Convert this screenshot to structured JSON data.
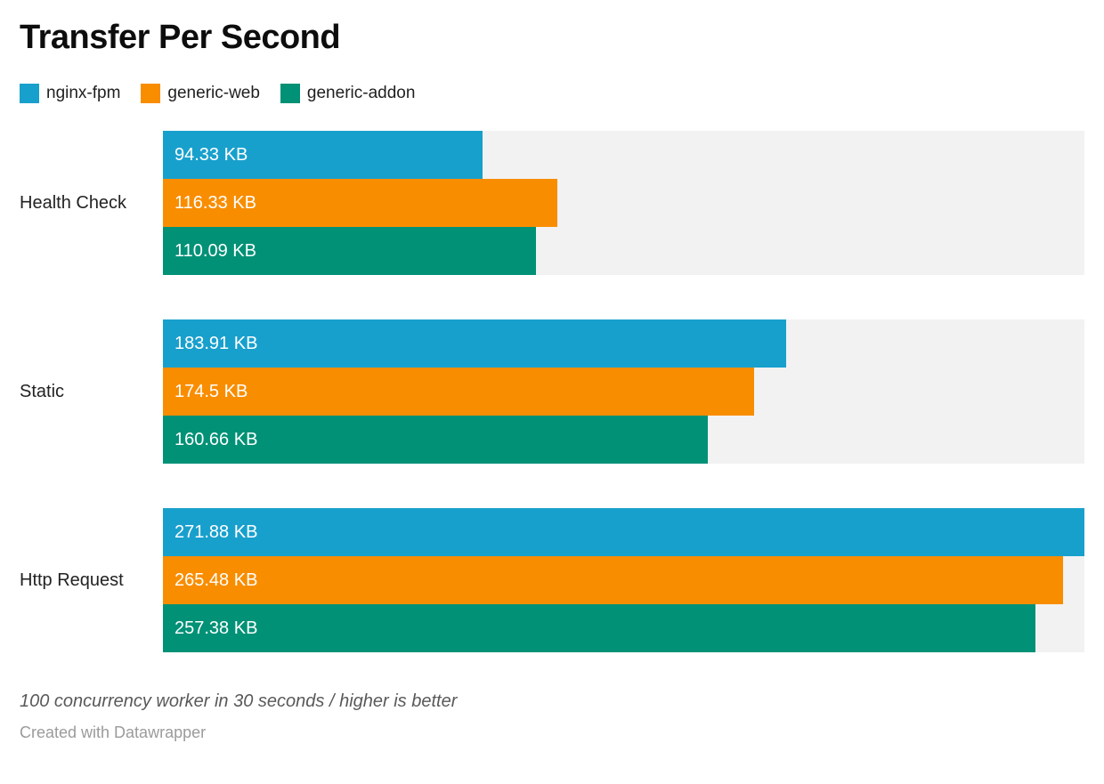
{
  "header": {
    "title": "Transfer Per Second"
  },
  "legend": {
    "items": [
      {
        "label": "nginx-fpm",
        "color": "#18a0cd"
      },
      {
        "label": "generic-web",
        "color": "#f98d00"
      },
      {
        "label": "generic-addon",
        "color": "#009176"
      }
    ]
  },
  "chart_data": {
    "type": "bar",
    "orientation": "horizontal",
    "title": "Transfer Per Second",
    "categories": [
      "Health Check",
      "Static",
      "Http Request"
    ],
    "series": [
      {
        "name": "nginx-fpm",
        "color": "#18a0cd",
        "values": [
          94.33,
          183.91,
          271.88
        ],
        "value_labels": [
          "94.33 KB",
          "183.91 KB",
          "271.88 KB"
        ]
      },
      {
        "name": "generic-web",
        "color": "#f98d00",
        "values": [
          116.33,
          174.5,
          265.48
        ],
        "value_labels": [
          "116.33 KB",
          "174.5 KB",
          "265.48 KB"
        ]
      },
      {
        "name": "generic-addon",
        "color": "#009176",
        "values": [
          110.09,
          160.66,
          257.38
        ],
        "value_labels": [
          "110.09 KB",
          "160.66 KB",
          "257.38 KB"
        ]
      }
    ],
    "unit": "KB",
    "xlim": [
      0,
      271.88
    ],
    "grid": false,
    "legend_position": "top",
    "track_color": "#f2f2f2",
    "bar_label_position": "inside-left",
    "bar_label_color": "#ffffff"
  },
  "footer": {
    "note": "100 concurrency worker in 30 seconds / higher is better",
    "attribution": "Created with Datawrapper"
  }
}
